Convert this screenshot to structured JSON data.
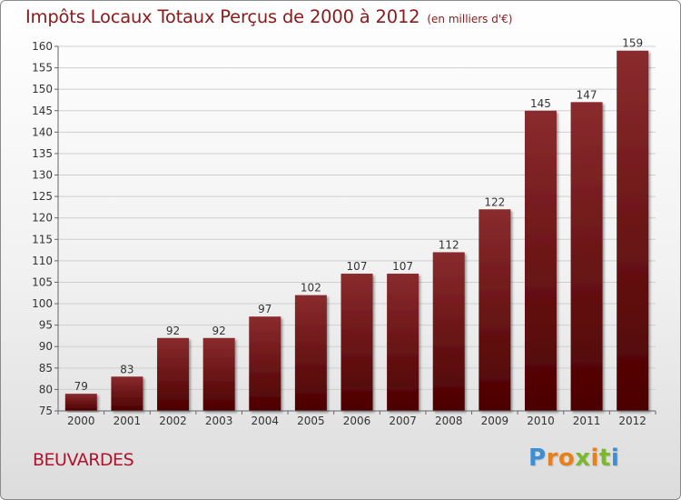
{
  "title": "Impôts Locaux Totaux Perçus de 2000 à 2012",
  "unit": "(en milliers d'€)",
  "commune": "BEUVARDES",
  "logo": {
    "letters": [
      "P",
      "r",
      "o",
      "x",
      "i",
      "t",
      "i"
    ],
    "colors": [
      "#3a8fd6",
      "#e8801a",
      "#e8801a",
      "#7cb82f",
      "#e8801a",
      "#7cb82f",
      "#3a8fd6"
    ]
  },
  "colors": {
    "bar_top": "#8a2b2e",
    "bar_bottom": "#4c0000",
    "grid": "#cfcfcf",
    "axis": "#666666",
    "text": "#333333"
  },
  "chart_data": {
    "type": "bar",
    "categories": [
      "2000",
      "2001",
      "2002",
      "2003",
      "2004",
      "2005",
      "2006",
      "2007",
      "2008",
      "2009",
      "2010",
      "2011",
      "2012"
    ],
    "values": [
      79,
      83,
      92,
      92,
      97,
      102,
      107,
      107,
      112,
      122,
      145,
      147,
      159
    ],
    "labels": [
      "79",
      "83",
      "92",
      "92",
      "97",
      "102",
      "107",
      "107",
      "112",
      "122",
      "145",
      "147",
      "159"
    ],
    "ylim": [
      75,
      160
    ],
    "yticks": [
      75,
      80,
      85,
      90,
      95,
      100,
      105,
      110,
      115,
      120,
      125,
      130,
      135,
      140,
      145,
      150,
      155,
      160
    ],
    "ytick_labels": [
      "75",
      "80",
      "85",
      "90",
      "95",
      "100",
      "105",
      "110",
      "115",
      "120",
      "125",
      "130",
      "135",
      "140",
      "145",
      "150",
      "155",
      "160"
    ],
    "title": "Impôts Locaux Totaux Perçus de 2000 à 2012",
    "xlabel": "",
    "ylabel": "",
    "grid": true
  }
}
